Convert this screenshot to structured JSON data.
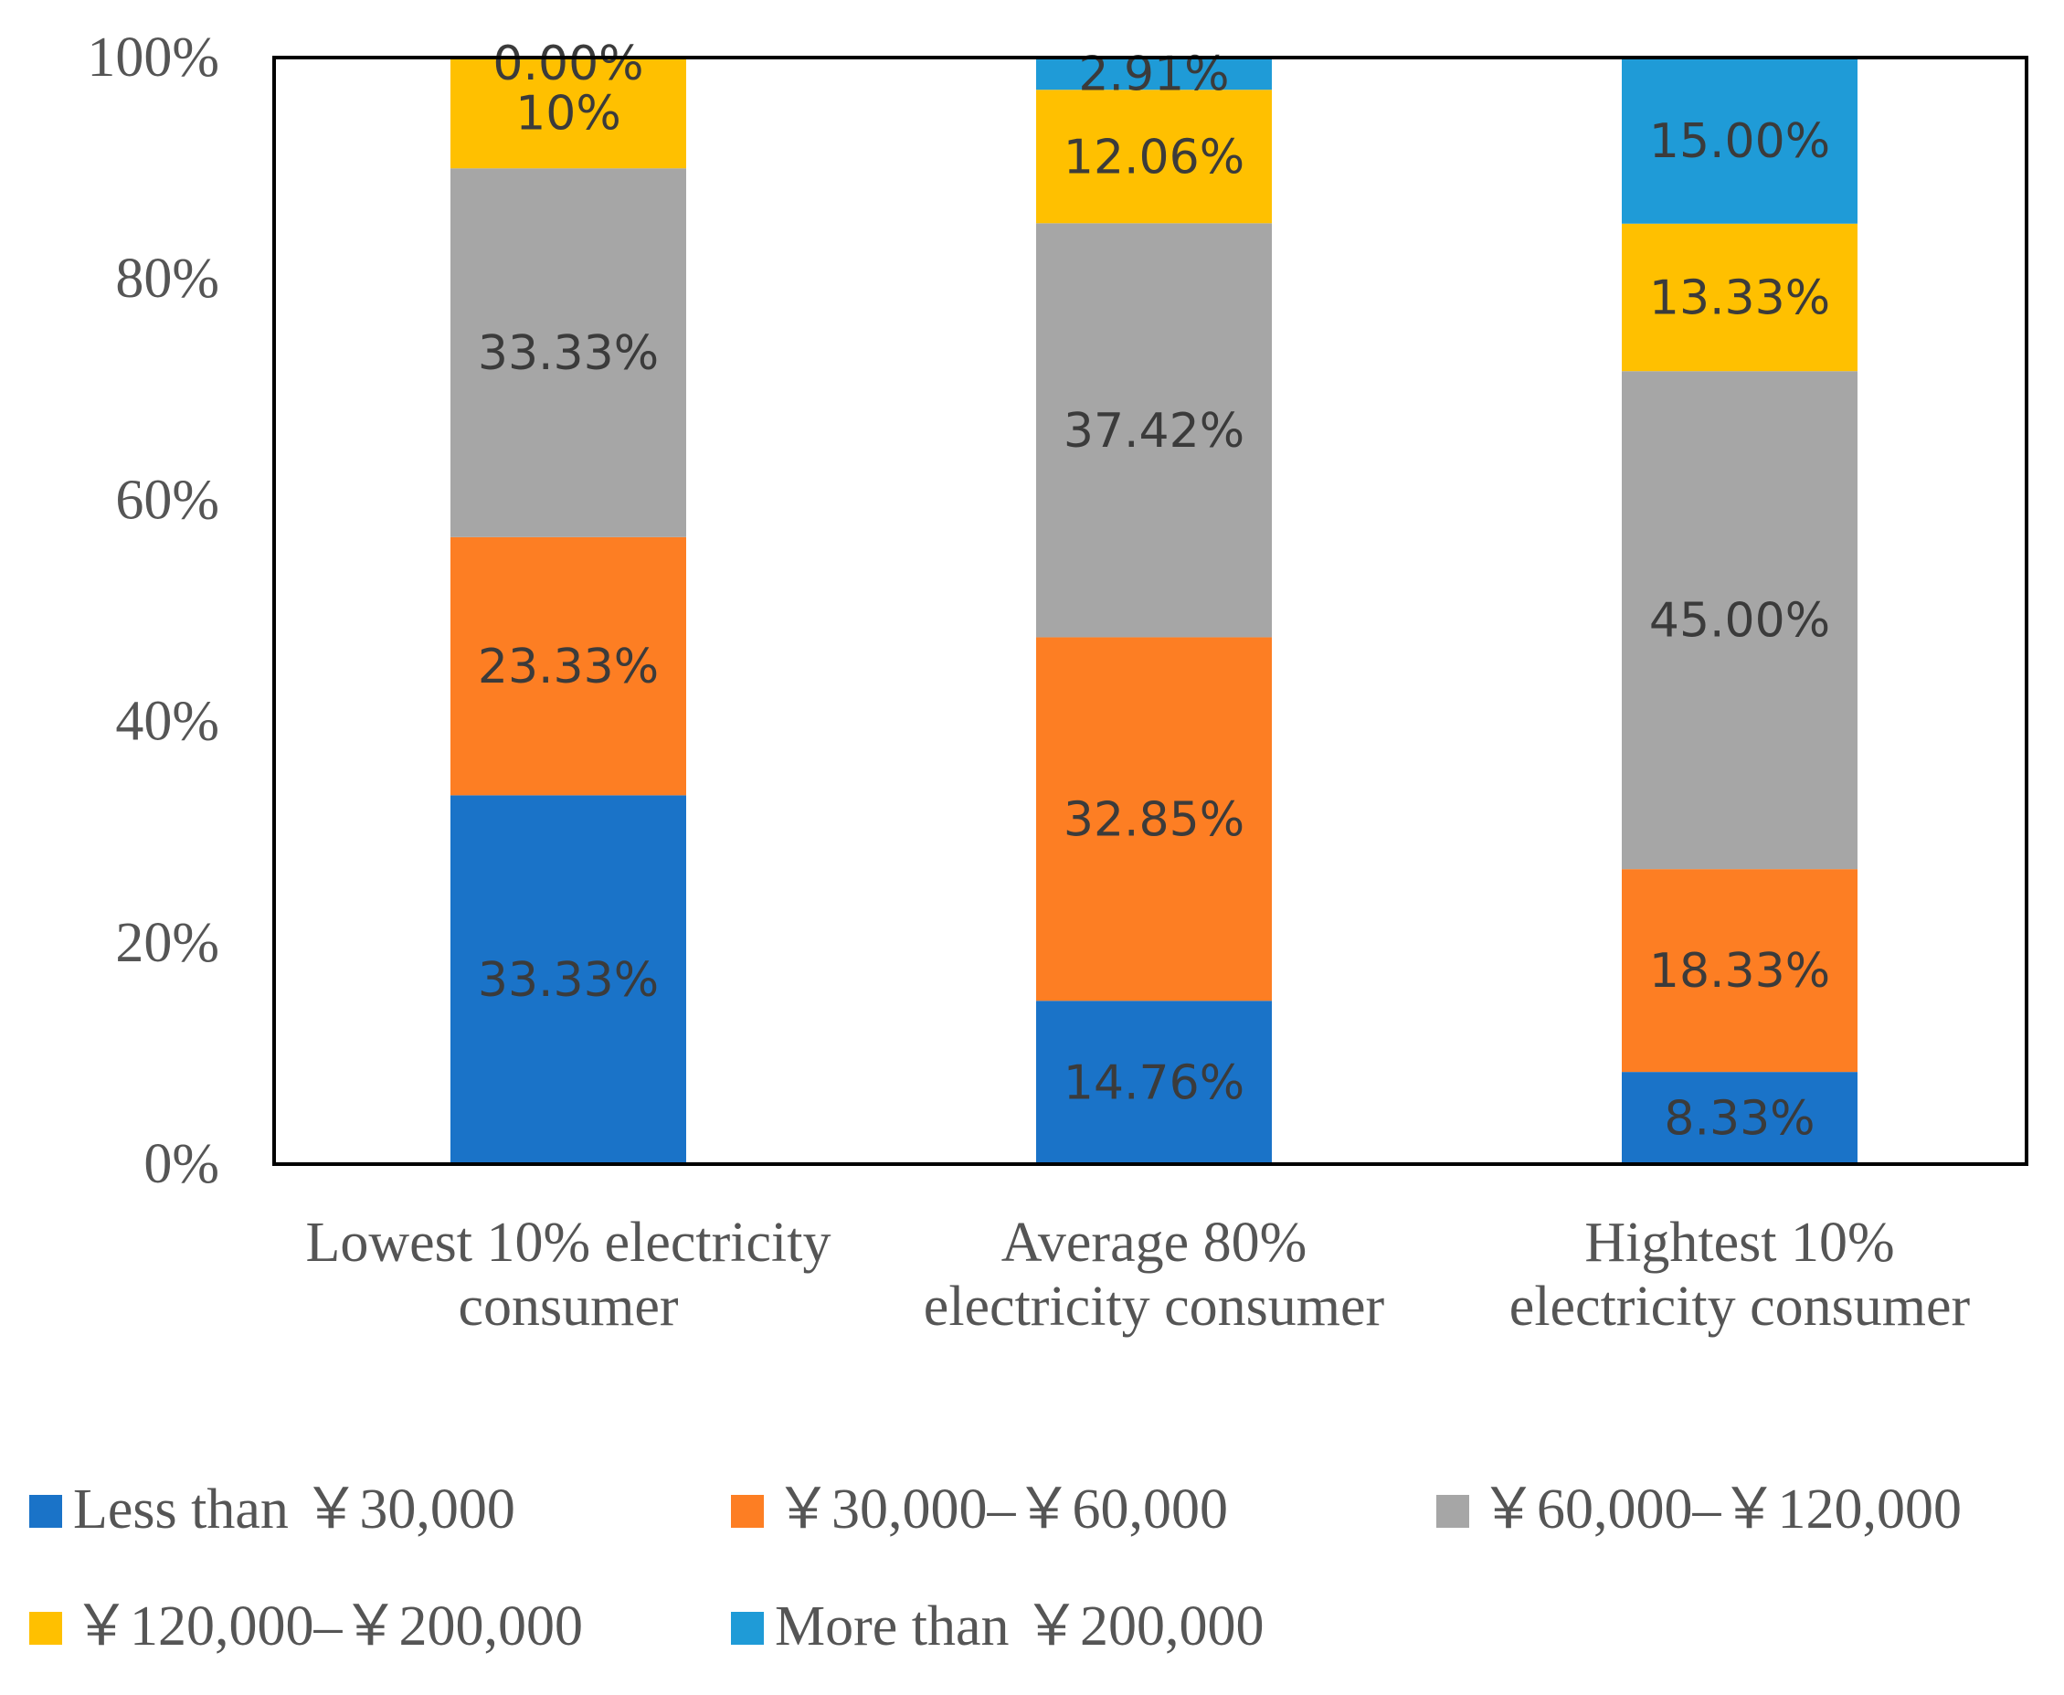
{
  "chart_data": {
    "type": "bar",
    "stacked": true,
    "percent": true,
    "categories": [
      [
        "Lowest  10% electricity",
        "consumer"
      ],
      [
        "Average 80%",
        "electricity consumer"
      ],
      [
        "Hightest 10%",
        "electricity consumer"
      ]
    ],
    "series": [
      {
        "name": "Less than ￥30,000",
        "color": "#1a73c8",
        "values": [
          33.33,
          14.76,
          8.33
        ],
        "labels": [
          "33.33%",
          "14.76%",
          "8.33%"
        ]
      },
      {
        "name": "￥30,000–￥60,000",
        "color": "#fd7e23",
        "values": [
          23.33,
          32.85,
          18.33
        ],
        "labels": [
          "23.33%",
          "32.85%",
          "18.33%"
        ]
      },
      {
        "name": "￥60,000–￥120,000",
        "color": "#a6a6a6",
        "values": [
          33.33,
          37.42,
          45.0
        ],
        "labels": [
          "33.33%",
          "37.42%",
          "45.00%"
        ]
      },
      {
        "name": "￥120,000–￥200,000",
        "color": "#ffc000",
        "values": [
          10.0,
          12.06,
          13.33
        ],
        "labels": [
          "10%",
          "12.06%",
          "13.33%"
        ]
      },
      {
        "name": "More than ￥200,000",
        "color": "#1f9bd7",
        "values": [
          0.0,
          2.91,
          15.0
        ],
        "labels": [
          "0.00%",
          "2.91%",
          "15.00%"
        ]
      }
    ],
    "ylim": [
      0,
      100
    ],
    "yticks": [
      "0%",
      "20%",
      "40%",
      "60%",
      "80%",
      "100%"
    ],
    "title": "",
    "xlabel": "",
    "ylabel": "",
    "legend_position": "bottom"
  }
}
